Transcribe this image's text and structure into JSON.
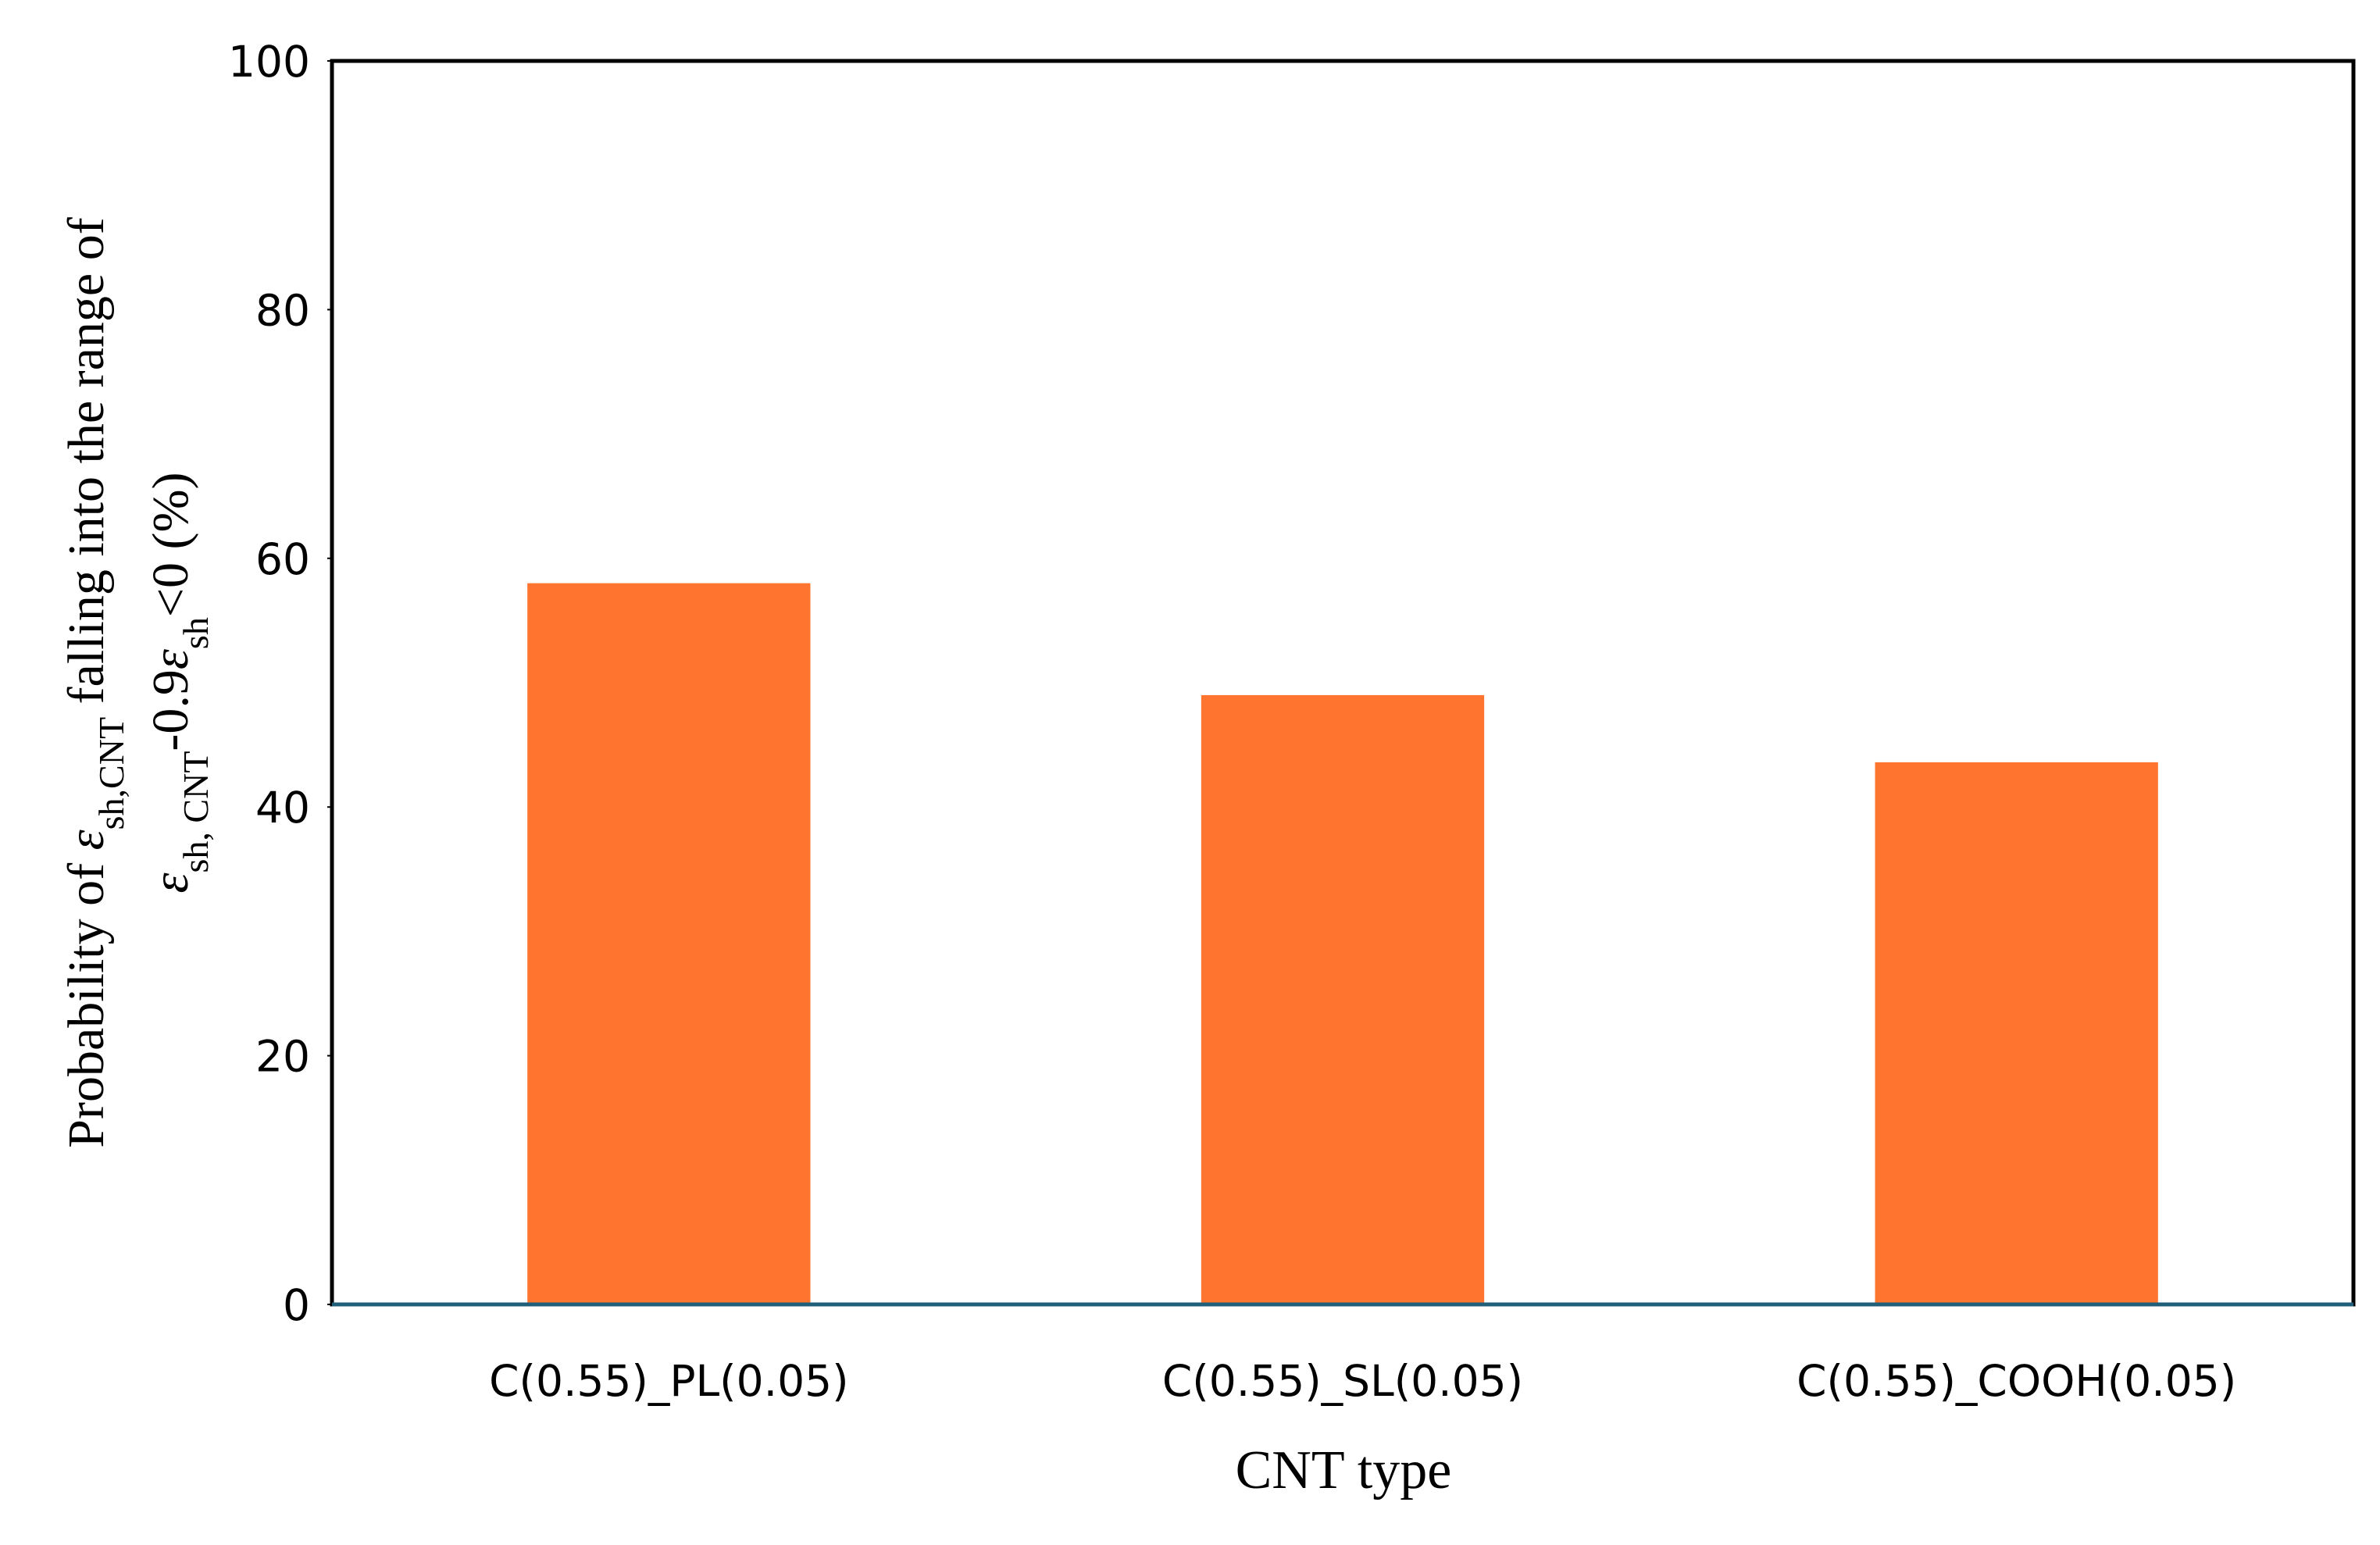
{
  "chart_data": {
    "type": "bar",
    "categories": [
      "C(0.55)_PL(0.05)",
      "C(0.55)_SL(0.05)",
      "C(0.55)_COOH(0.05)"
    ],
    "values": [
      58,
      49,
      43.6
    ],
    "color": "#ff7530",
    "ylim": [
      0,
      100
    ],
    "yticks": [
      0,
      20,
      40,
      60,
      80,
      100
    ],
    "xlabel": "CNT type",
    "ylabel": [
      [
        {
          "text": "Probability of "
        },
        {
          "text": "ε",
          "italic": true
        },
        {
          "text": "sh,CNT",
          "sub": true
        },
        {
          "text": " falling into the range of"
        }
      ],
      [
        {
          "text": "ε",
          "italic": true
        },
        {
          "text": "sh, CNT",
          "sub": true
        },
        {
          "text": "-0.9"
        },
        {
          "text": "ε",
          "italic": true
        },
        {
          "text": "sh",
          "sub": true
        },
        {
          "text": "<0 (%)"
        }
      ]
    ]
  }
}
